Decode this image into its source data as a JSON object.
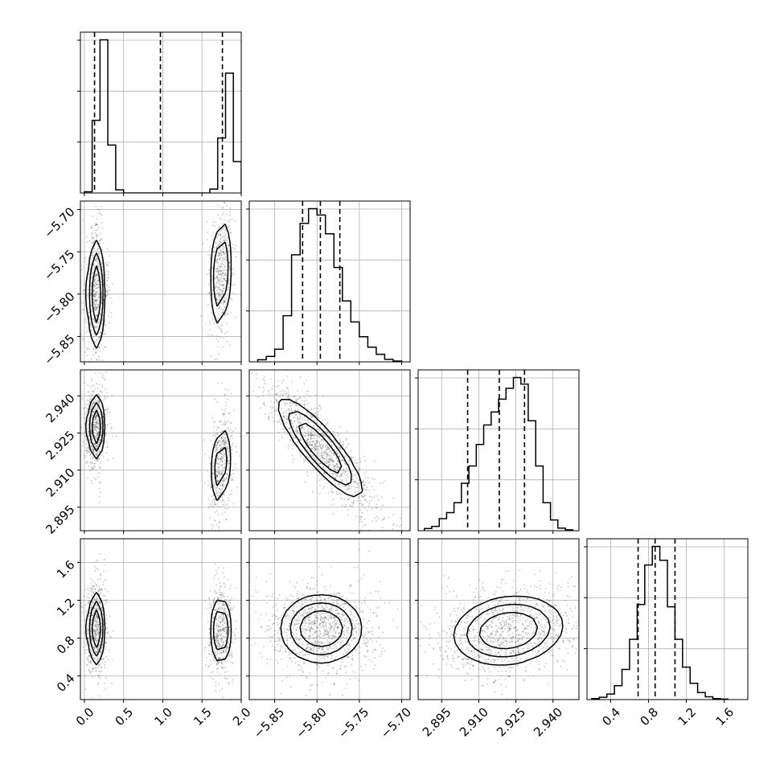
{
  "chart_data": {
    "type": "scatter",
    "grid": true,
    "parameters": [
      {
        "ticks": [
          "0.0",
          "0.5",
          "1.0",
          "1.5",
          "2.0"
        ],
        "range": [
          -0.05,
          2.0
        ]
      },
      {
        "ticks": [
          "−5.85",
          "−5.80",
          "−5.75",
          "−5.70"
        ],
        "range": [
          -5.88,
          -5.69
        ]
      },
      {
        "ticks": [
          "2.895",
          "2.910",
          "2.925",
          "2.940"
        ],
        "range": [
          2.8855,
          2.9505
        ]
      },
      {
        "ticks": [
          "0.4",
          "0.8",
          "1.2",
          "1.6"
        ],
        "range": [
          0.15,
          1.85
        ]
      }
    ],
    "marginals": [
      {
        "bin_edges": [
          0.0,
          0.1,
          0.2,
          0.3,
          0.4,
          0.5,
          0.6,
          0.7,
          0.8,
          0.9,
          1.0,
          1.1,
          1.2,
          1.3,
          1.4,
          1.5,
          1.6,
          1.7,
          1.8,
          1.9,
          2.0
        ],
        "counts": [
          3,
          185,
          390,
          122,
          8,
          0,
          0,
          0,
          0,
          0,
          0,
          0,
          0,
          0,
          0,
          0,
          10,
          140,
          305,
          80
        ],
        "quantiles": [
          0.13,
          0.97,
          1.76
        ]
      },
      {
        "bin_edges": [
          -5.87,
          -5.86,
          -5.85,
          -5.84,
          -5.83,
          -5.82,
          -5.81,
          -5.8,
          -5.79,
          -5.78,
          -5.77,
          -5.76,
          -5.75,
          -5.74,
          -5.73,
          -5.72,
          -5.71,
          -5.7
        ],
        "counts": [
          5,
          13,
          30,
          110,
          255,
          330,
          365,
          350,
          305,
          225,
          145,
          95,
          60,
          35,
          18,
          6,
          2
        ],
        "quantiles": [
          -5.817,
          -5.796,
          -5.773
        ]
      },
      {
        "bin_edges": [
          2.888,
          2.891,
          2.894,
          2.897,
          2.9,
          2.903,
          2.906,
          2.909,
          2.912,
          2.915,
          2.918,
          2.921,
          2.924,
          2.927,
          2.93,
          2.933,
          2.936,
          2.939,
          2.942,
          2.945,
          2.948
        ],
        "counts": [
          5,
          10,
          28,
          42,
          65,
          110,
          150,
          200,
          245,
          275,
          305,
          330,
          355,
          340,
          255,
          150,
          65,
          25,
          6,
          2
        ],
        "quantiles": [
          2.9055,
          2.9183,
          2.9285
        ]
      },
      {
        "bin_edges": [
          0.2,
          0.28,
          0.36,
          0.44,
          0.52,
          0.6,
          0.68,
          0.76,
          0.84,
          0.92,
          1.0,
          1.08,
          1.16,
          1.24,
          1.32,
          1.4,
          1.48,
          1.56,
          1.64
        ],
        "counts": [
          2,
          5,
          12,
          30,
          65,
          130,
          205,
          290,
          330,
          300,
          200,
          130,
          70,
          35,
          15,
          6,
          2,
          1
        ],
        "quantiles": [
          0.69,
          0.87,
          1.08
        ]
      }
    ],
    "blobs": [
      {
        "i": 1,
        "j": 0,
        "components": [
          {
            "w": 0.55,
            "mx": 0.15,
            "my": -5.8,
            "sx": 0.055,
            "sy": 0.032,
            "rho": 0.0
          },
          {
            "w": 0.45,
            "mx": 1.74,
            "my": -5.775,
            "sx": 0.058,
            "sy": 0.033,
            "rho": 0.2
          }
        ]
      },
      {
        "i": 2,
        "j": 0,
        "components": [
          {
            "w": 0.55,
            "mx": 0.15,
            "my": 2.9275,
            "sx": 0.055,
            "sy": 0.0065,
            "rho": 0.0
          },
          {
            "w": 0.45,
            "mx": 1.74,
            "my": 2.912,
            "sx": 0.058,
            "sy": 0.0085,
            "rho": 0.25
          }
        ]
      },
      {
        "i": 3,
        "j": 0,
        "components": [
          {
            "w": 0.55,
            "mx": 0.15,
            "my": 0.9,
            "sx": 0.055,
            "sy": 0.19,
            "rho": 0.0
          },
          {
            "w": 0.45,
            "mx": 1.74,
            "my": 0.88,
            "sx": 0.058,
            "sy": 0.19,
            "rho": 0.0
          }
        ]
      },
      {
        "i": 2,
        "j": 1,
        "components": [
          {
            "w": 1.0,
            "mx": -5.796,
            "my": 2.919,
            "sx": 0.025,
            "sy": 0.01,
            "rho": -0.86
          }
        ]
      },
      {
        "i": 3,
        "j": 1,
        "components": [
          {
            "w": 1.0,
            "mx": -5.795,
            "my": 0.9,
            "sx": 0.024,
            "sy": 0.18,
            "rho": 0.0
          }
        ]
      },
      {
        "i": 3,
        "j": 2,
        "components": [
          {
            "w": 1.0,
            "mx": 2.922,
            "my": 0.88,
            "sx": 0.011,
            "sy": 0.18,
            "rho": 0.15
          }
        ]
      }
    ]
  }
}
